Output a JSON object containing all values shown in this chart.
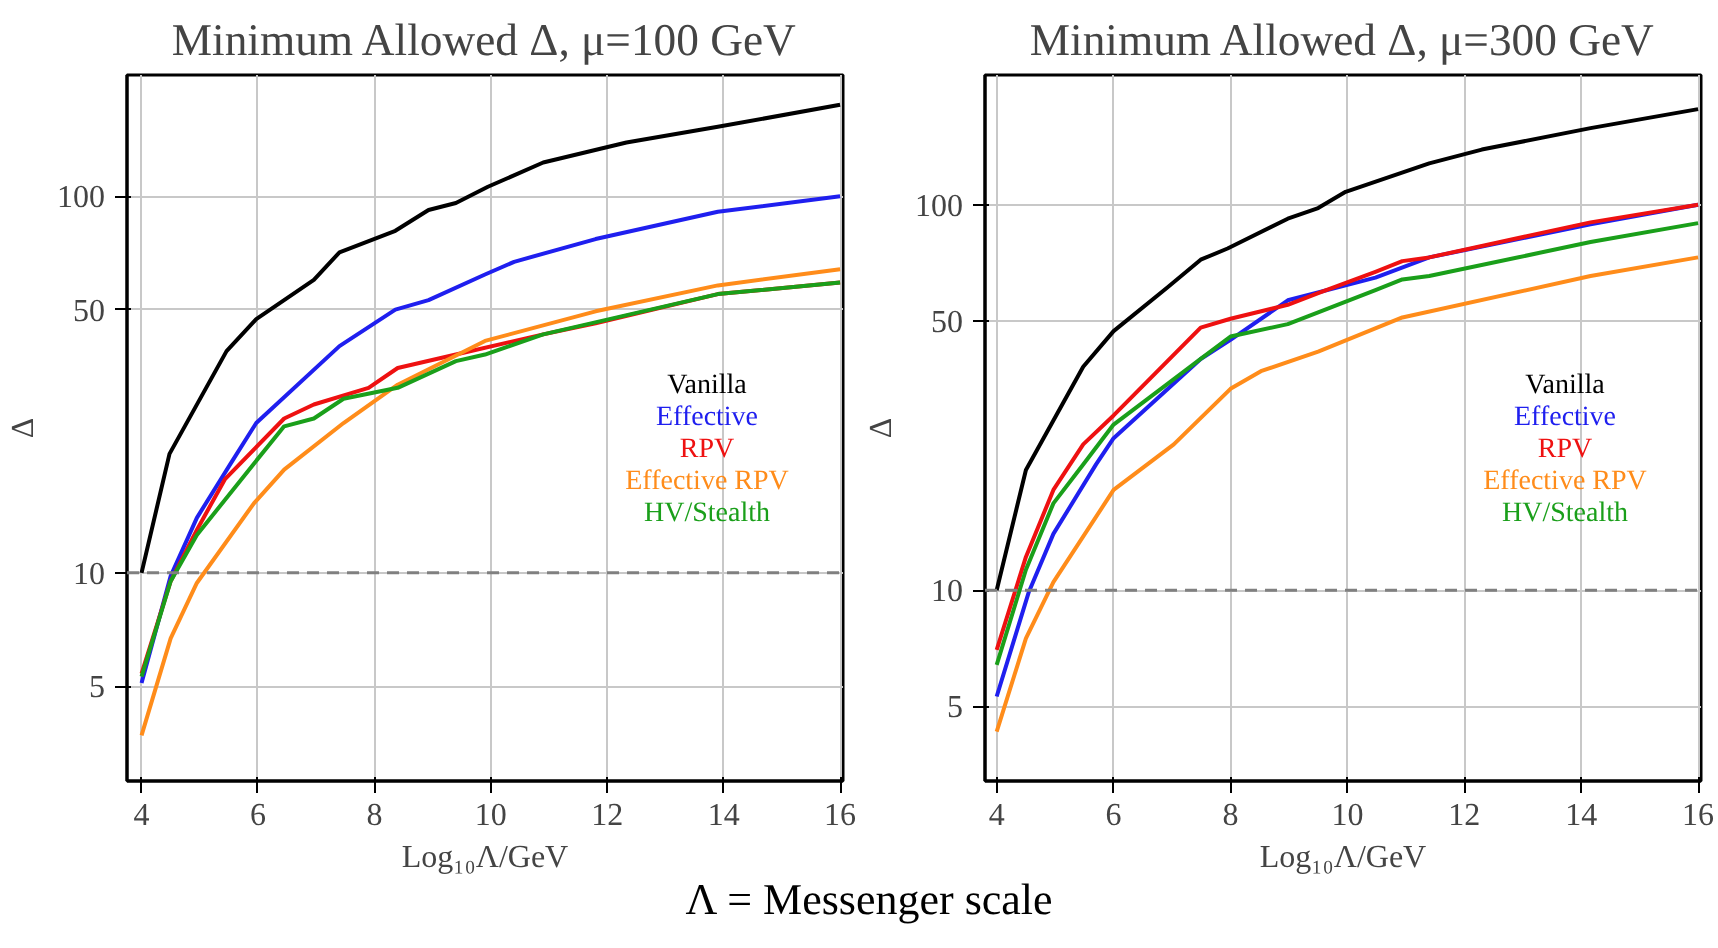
{
  "chart_data": [
    {
      "type": "line",
      "title": "Minimum Allowed Δ, μ=100 GeV",
      "xlabel": "Log₁₀Λ/GeV",
      "ylabel": "Δ",
      "log": "y",
      "grid": true,
      "legend": "right",
      "line_style": "solid",
      "marker": "none",
      "xlim": [
        3.75,
        16.05
      ],
      "xticks": [
        4,
        6,
        8,
        10,
        12,
        14,
        16
      ],
      "ylim": [
        2.8,
        210
      ],
      "yticks": [
        5,
        10,
        50,
        100
      ],
      "ref_lines": [
        {
          "axis": "y",
          "value": 10,
          "color": "#808080",
          "line_style": "dashed"
        }
      ],
      "annotations": [
        "Λ = Messenger scale"
      ],
      "series": [
        {
          "name": "Vanilla",
          "color": "#000000",
          "x": [
            4,
            4.48,
            5.46,
            5.97,
            6.96,
            7.4,
            8.36,
            8.93,
            9.4,
            9.95,
            10.9,
            11.9,
            12.33,
            13.9,
            16
          ],
          "values": [
            10,
            20.7,
            38.8,
            47.2,
            60,
            71,
            81,
            92,
            96,
            106,
            123,
            134,
            139,
            153,
            175
          ]
        },
        {
          "name": "Effective",
          "color": "#1f1fef",
          "x": [
            4,
            4.5,
            4.95,
            5.53,
            5.97,
            7.4,
            8.36,
            8.93,
            9.9,
            10.4,
            11.8,
            13.9,
            16
          ],
          "values": [
            5.1,
            9.8,
            14,
            19.5,
            25,
            40,
            50,
            53,
            62,
            67,
            77,
            91,
            100
          ]
        },
        {
          "name": "RPV",
          "color": "#ee1111",
          "x": [
            4,
            4.5,
            4.95,
            5.43,
            6.45,
            6.96,
            7.9,
            8.4,
            9.4,
            10.9,
            11.8,
            13.9,
            16
          ],
          "values": [
            5.4,
            9.5,
            13,
            17.7,
            25.7,
            28,
            31,
            35,
            38,
            43,
            46,
            55,
            59
          ]
        },
        {
          "name": "Effective RPV",
          "color": "#ff8c1a",
          "x": [
            4,
            4.5,
            4.95,
            5.93,
            6.45,
            7.47,
            8.4,
            9.9,
            11.8,
            13.9,
            16
          ],
          "values": [
            3.7,
            6.7,
            9.4,
            15.3,
            18.8,
            25,
            31.6,
            41.3,
            49.5,
            58,
            64
          ]
        },
        {
          "name": "HV/Stealth",
          "color": "#1a9f1a",
          "x": [
            4,
            4.5,
            4.95,
            5.93,
            6.45,
            6.96,
            7.47,
            8.4,
            9.4,
            9.9,
            10.9,
            13.9,
            16
          ],
          "values": [
            5.3,
            9.5,
            12.6,
            19.5,
            24.5,
            25.7,
            29,
            31,
            36.5,
            38,
            43,
            55,
            59
          ]
        }
      ]
    },
    {
      "type": "line",
      "title": "Minimum Allowed Δ, μ=300 GeV",
      "xlabel": "Log₁₀Λ/GeV",
      "ylabel": "Δ",
      "log": "y",
      "grid": true,
      "legend": "right",
      "line_style": "solid",
      "marker": "none",
      "xlim": [
        3.8,
        16.05
      ],
      "xticks": [
        4,
        6,
        8,
        10,
        12,
        14,
        16
      ],
      "ylim": [
        3.2,
        217
      ],
      "yticks": [
        5,
        10,
        50,
        100
      ],
      "ref_lines": [
        {
          "axis": "y",
          "value": 10,
          "color": "#808080",
          "line_style": "dashed"
        }
      ],
      "series": [
        {
          "name": "Vanilla",
          "color": "#000000",
          "x": [
            4,
            4.5,
            5.48,
            6,
            6.92,
            7.49,
            7.95,
            8.98,
            9.5,
            9.97,
            11.4,
            12.3,
            14.16,
            16
          ],
          "values": [
            10,
            20.5,
            38,
            47,
            61,
            72,
            77,
            92,
            98,
            108,
            128,
            139,
            158,
            177
          ]
        },
        {
          "name": "Effective",
          "color": "#1f1fef",
          "x": [
            4,
            4.55,
            4.97,
            5.7,
            6,
            7.49,
            8,
            8.98,
            10.48,
            11.4,
            14.16,
            16
          ],
          "values": [
            5.3,
            9.9,
            14,
            21.2,
            24.8,
            39.8,
            44.6,
            56.5,
            64.7,
            73,
            89,
            100
          ]
        },
        {
          "name": "RPV",
          "color": "#ee1111",
          "x": [
            4,
            4.5,
            4.97,
            5.48,
            6,
            7.49,
            8,
            8.98,
            9.5,
            10.48,
            10.94,
            11.4,
            14.16,
            16
          ],
          "values": [
            7,
            12.2,
            18.2,
            23.9,
            28.4,
            48,
            50.6,
            55,
            59,
            67,
            71.4,
            73,
            90,
            100
          ]
        },
        {
          "name": "Effective RPV",
          "color": "#ff8c1a",
          "x": [
            4,
            4.5,
            4.97,
            6,
            7.03,
            8,
            8.52,
            9.5,
            10.94,
            14.16,
            16
          ],
          "values": [
            4.3,
            7.5,
            10.5,
            18.2,
            23.9,
            33.3,
            37,
            41.6,
            51,
            65.3,
            73
          ]
        },
        {
          "name": "HV/Stealth",
          "color": "#1a9f1a",
          "x": [
            4,
            4.5,
            4.97,
            5.48,
            6,
            7.49,
            8,
            8.98,
            9.5,
            10.48,
            10.94,
            11.4,
            14.16,
            16
          ],
          "values": [
            6.4,
            11.3,
            16.8,
            21.2,
            26.9,
            39.8,
            45.5,
            49,
            52.6,
            60,
            64,
            65.3,
            80,
            89.6
          ]
        }
      ]
    }
  ]
}
